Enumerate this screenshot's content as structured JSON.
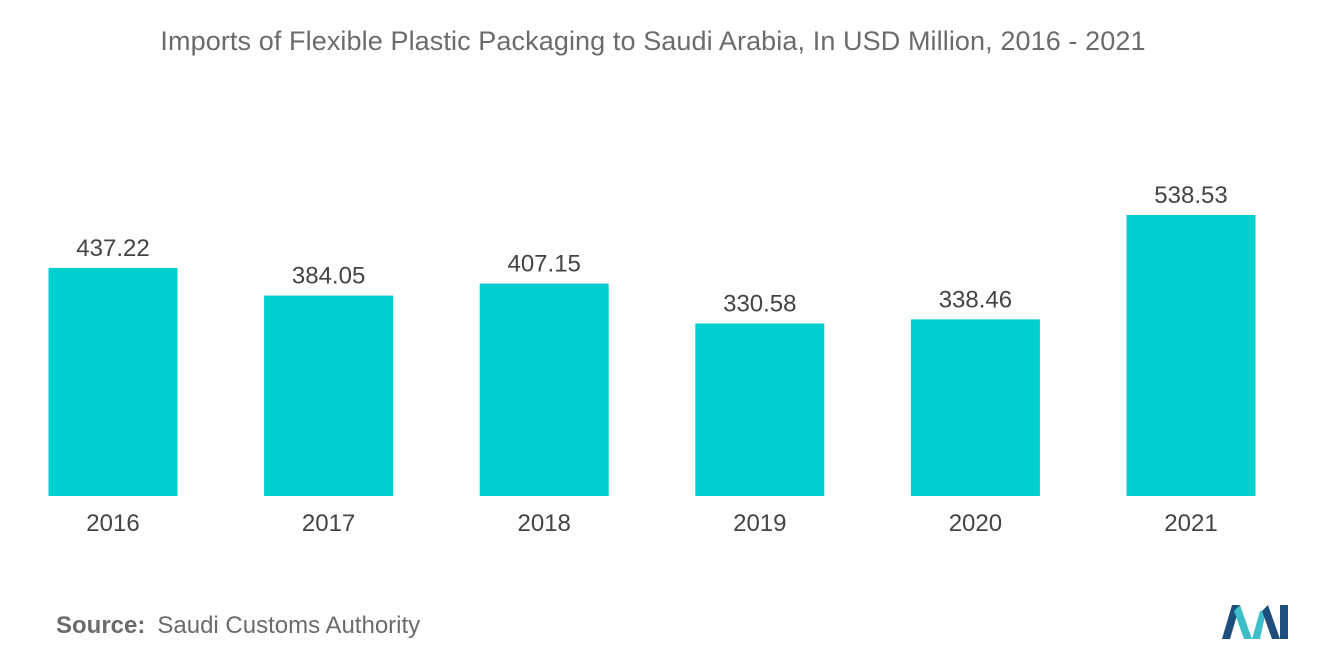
{
  "chart_data": {
    "type": "bar",
    "title": "Imports of Flexible Plastic Packaging to Saudi Arabia, In USD Million, 2016 - 2021",
    "categories": [
      "2016",
      "2017",
      "2018",
      "2019",
      "2020",
      "2021"
    ],
    "values": [
      437.22,
      384.05,
      407.15,
      330.58,
      338.46,
      538.53
    ],
    "value_labels": [
      "437.22",
      "384.05",
      "407.15",
      "330.58",
      "338.46",
      "538.53"
    ],
    "xlabel": "",
    "ylabel": "",
    "ylim": [
      0,
      538.53
    ],
    "grid": false,
    "legend": "none",
    "bar_color": "#00cecf"
  },
  "source": {
    "label": "Source:",
    "text": "Saudi Customs Authority"
  },
  "colors": {
    "title": "#6b6b6b",
    "axis_text": "#444444",
    "logo_dark": "#1d4e7c",
    "logo_light": "#3dbfca"
  }
}
